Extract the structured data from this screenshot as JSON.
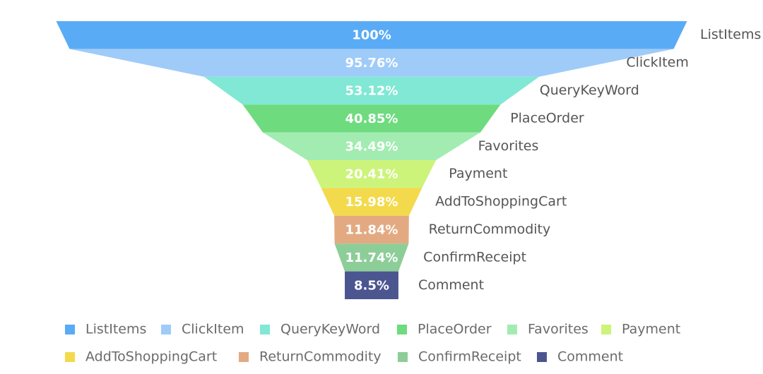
{
  "chart_data": {
    "type": "funnel",
    "categories": [
      "ListItems",
      "ClickItem",
      "QueryKeyWord",
      "PlaceOrder",
      "Favorites",
      "Payment",
      "AddToShoppingCart",
      "ReturnCommodity",
      "ConfirmReceipt",
      "Comment"
    ],
    "values": [
      100,
      95.76,
      53.12,
      40.85,
      34.49,
      20.41,
      15.98,
      11.84,
      11.74,
      8.5
    ],
    "value_labels": [
      "100%",
      "95.76%",
      "53.12%",
      "40.85%",
      "34.49%",
      "20.41%",
      "15.98%",
      "11.84%",
      "11.74%",
      "8.5%"
    ],
    "colors": [
      "#5aabf5",
      "#9fcbf8",
      "#80e8d4",
      "#6edb7e",
      "#a2ecb2",
      "#cdf47a",
      "#f3da4c",
      "#e3aa82",
      "#8dcd98",
      "#4b5590"
    ],
    "legend": "bottom"
  }
}
